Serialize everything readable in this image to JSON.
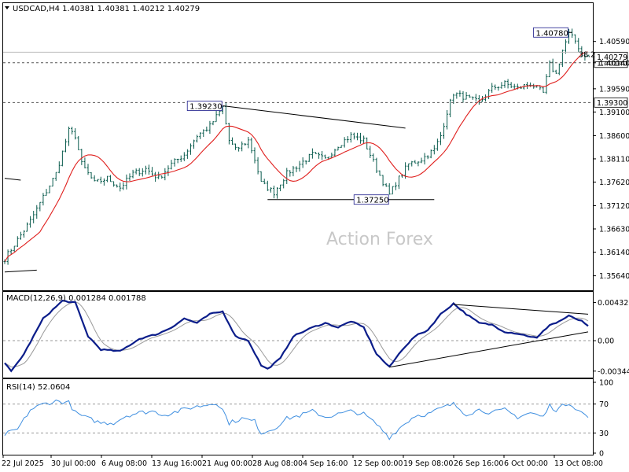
{
  "colors": {
    "bars": "#0a5c4e",
    "ma": "#e0201e",
    "macd": "#0b1d8a",
    "signal": "#9a9a9a",
    "rsi": "#3f8fe0",
    "dash": "#555555",
    "grid": "#888888"
  },
  "chart_data": {
    "type": "line",
    "main": {
      "header": "USDCAD,H4  1.40381 1.40381 1.40212 1.40279",
      "watermark": "Action Forex",
      "y_ticks": [
        "1.40590",
        "1.40140",
        "1.39590",
        "1.39100",
        "1.38600",
        "1.38110",
        "1.37620",
        "1.37120",
        "1.36630",
        "1.36140",
        "1.35640"
      ],
      "ylim": [
        1.3555,
        1.411
      ],
      "current_price": "1.40279",
      "fib_label": "38.2",
      "levels": [
        {
          "value": 1.4014,
          "label": "1.40140"
        },
        {
          "value": 1.393,
          "label": "1.39300"
        }
      ],
      "annotations": [
        {
          "label": "1.40780",
          "value": 1.4078,
          "index": 176
        },
        {
          "label": "1.39230",
          "value": 1.3923,
          "index": 68
        },
        {
          "label": "1.37250",
          "value": 1.3725,
          "index": 120
        }
      ],
      "close_anchors": [
        [
          0,
          1.36
        ],
        [
          4,
          1.364
        ],
        [
          8,
          1.368
        ],
        [
          12,
          1.373
        ],
        [
          16,
          1.378
        ],
        [
          20,
          1.387
        ],
        [
          22,
          1.386
        ],
        [
          24,
          1.38
        ],
        [
          28,
          1.376
        ],
        [
          32,
          1.377
        ],
        [
          36,
          1.375
        ],
        [
          40,
          1.378
        ],
        [
          44,
          1.379
        ],
        [
          48,
          1.377
        ],
        [
          52,
          1.38
        ],
        [
          56,
          1.382
        ],
        [
          60,
          1.386
        ],
        [
          64,
          1.388
        ],
        [
          68,
          1.392
        ],
        [
          70,
          1.385
        ],
        [
          72,
          1.383
        ],
        [
          76,
          1.385
        ],
        [
          78,
          1.381
        ],
        [
          80,
          1.376
        ],
        [
          84,
          1.374
        ],
        [
          88,
          1.378
        ],
        [
          92,
          1.38
        ],
        [
          96,
          1.382
        ],
        [
          100,
          1.381
        ],
        [
          104,
          1.384
        ],
        [
          108,
          1.386
        ],
        [
          112,
          1.385
        ],
        [
          116,
          1.379
        ],
        [
          120,
          1.3735
        ],
        [
          122,
          1.376
        ],
        [
          126,
          1.38
        ],
        [
          130,
          1.381
        ],
        [
          134,
          1.383
        ],
        [
          136,
          1.386
        ],
        [
          138,
          1.391
        ],
        [
          140,
          1.395
        ],
        [
          144,
          1.394
        ],
        [
          148,
          1.393
        ],
        [
          152,
          1.396
        ],
        [
          156,
          1.397
        ],
        [
          160,
          1.396
        ],
        [
          164,
          1.397
        ],
        [
          168,
          1.395
        ],
        [
          170,
          1.401
        ],
        [
          172,
          1.399
        ],
        [
          174,
          1.404
        ],
        [
          176,
          1.4075
        ],
        [
          178,
          1.406
        ],
        [
          180,
          1.4035
        ],
        [
          182,
          1.4028
        ]
      ],
      "trendlines": [
        {
          "from": [
            68,
            1.3923
          ],
          "to": [
            125,
            1.3876
          ]
        },
        {
          "from": [
            82,
            1.3725
          ],
          "to": [
            134,
            1.3725
          ]
        },
        {
          "from": [
            0,
            1.3572
          ],
          "to": [
            10,
            1.3576
          ]
        },
        {
          "from": [
            0,
            1.377
          ],
          "to": [
            5,
            1.3766
          ]
        },
        {
          "from": [
            174,
            1.4078
          ],
          "to": [
            177,
            1.4078
          ]
        }
      ],
      "n": 183
    },
    "macd": {
      "label": "MACD(12,26,9) 0.001284 0.001788",
      "y_ticks": [
        "0.004327",
        "0.00",
        "-0.003444"
      ],
      "ylim": [
        -0.004,
        0.0049
      ],
      "anchors": [
        [
          0,
          -0.0025
        ],
        [
          2,
          -0.0035
        ],
        [
          6,
          -0.0015
        ],
        [
          12,
          0.0025
        ],
        [
          18,
          0.0045
        ],
        [
          22,
          0.0043
        ],
        [
          26,
          0.0005
        ],
        [
          30,
          -0.001
        ],
        [
          36,
          -0.0012
        ],
        [
          42,
          0.0002
        ],
        [
          48,
          0.0008
        ],
        [
          52,
          0.0015
        ],
        [
          56,
          0.0025
        ],
        [
          60,
          0.002
        ],
        [
          64,
          0.003
        ],
        [
          68,
          0.0033
        ],
        [
          72,
          0.0005
        ],
        [
          76,
          0.0
        ],
        [
          80,
          -0.0028
        ],
        [
          82,
          -0.0032
        ],
        [
          86,
          -0.002
        ],
        [
          90,
          0.0005
        ],
        [
          96,
          0.0015
        ],
        [
          100,
          0.002
        ],
        [
          104,
          0.0015
        ],
        [
          108,
          0.0022
        ],
        [
          112,
          0.0015
        ],
        [
          116,
          -0.0015
        ],
        [
          120,
          -0.003
        ],
        [
          124,
          -0.001
        ],
        [
          128,
          0.0005
        ],
        [
          132,
          0.0012
        ],
        [
          136,
          0.003
        ],
        [
          140,
          0.0042
        ],
        [
          144,
          0.003
        ],
        [
          148,
          0.002
        ],
        [
          152,
          0.0018
        ],
        [
          156,
          0.001
        ],
        [
          160,
          0.0008
        ],
        [
          166,
          0.0003
        ],
        [
          170,
          0.0018
        ],
        [
          172,
          0.002
        ],
        [
          176,
          0.0028
        ],
        [
          180,
          0.0022
        ],
        [
          182,
          0.0016
        ]
      ],
      "lines": [
        {
          "from": [
            140,
            0.0041
          ],
          "to": [
            182,
            0.003
          ]
        },
        {
          "from": [
            120,
            -0.003
          ],
          "to": [
            182,
            0.001
          ]
        }
      ]
    },
    "rsi": {
      "label": "RSI(14) 52.0604",
      "y_ticks": [
        "100",
        "70",
        "30",
        "0"
      ],
      "ylim": [
        0,
        100
      ],
      "levels": [
        70,
        30
      ],
      "anchors": [
        [
          0,
          28
        ],
        [
          4,
          35
        ],
        [
          8,
          62
        ],
        [
          12,
          70
        ],
        [
          16,
          74
        ],
        [
          20,
          72
        ],
        [
          22,
          58
        ],
        [
          26,
          50
        ],
        [
          30,
          44
        ],
        [
          34,
          44
        ],
        [
          38,
          54
        ],
        [
          42,
          58
        ],
        [
          46,
          60
        ],
        [
          50,
          55
        ],
        [
          54,
          60
        ],
        [
          58,
          65
        ],
        [
          62,
          68
        ],
        [
          66,
          72
        ],
        [
          68,
          62
        ],
        [
          70,
          44
        ],
        [
          74,
          50
        ],
        [
          78,
          46
        ],
        [
          80,
          30
        ],
        [
          84,
          36
        ],
        [
          88,
          50
        ],
        [
          92,
          54
        ],
        [
          96,
          60
        ],
        [
          100,
          52
        ],
        [
          104,
          56
        ],
        [
          108,
          60
        ],
        [
          112,
          56
        ],
        [
          116,
          42
        ],
        [
          120,
          24
        ],
        [
          124,
          40
        ],
        [
          128,
          54
        ],
        [
          132,
          56
        ],
        [
          136,
          64
        ],
        [
          140,
          70
        ],
        [
          144,
          56
        ],
        [
          148,
          62
        ],
        [
          152,
          58
        ],
        [
          156,
          62
        ],
        [
          160,
          52
        ],
        [
          164,
          58
        ],
        [
          168,
          52
        ],
        [
          170,
          68
        ],
        [
          172,
          62
        ],
        [
          176,
          72
        ],
        [
          180,
          58
        ],
        [
          182,
          52
        ]
      ]
    },
    "x_ticks": [
      "22 Jul 2025",
      "30 Jul 00:00",
      "6 Aug 08:00",
      "13 Aug 16:00",
      "21 Aug 00:00",
      "28 Aug 08:00",
      "4 Sep 16:00",
      "12 Sep 00:00",
      "19 Sep 08:00",
      "26 Sep 16:00",
      "6 Oct 00:00",
      "13 Oct 08:00"
    ]
  }
}
